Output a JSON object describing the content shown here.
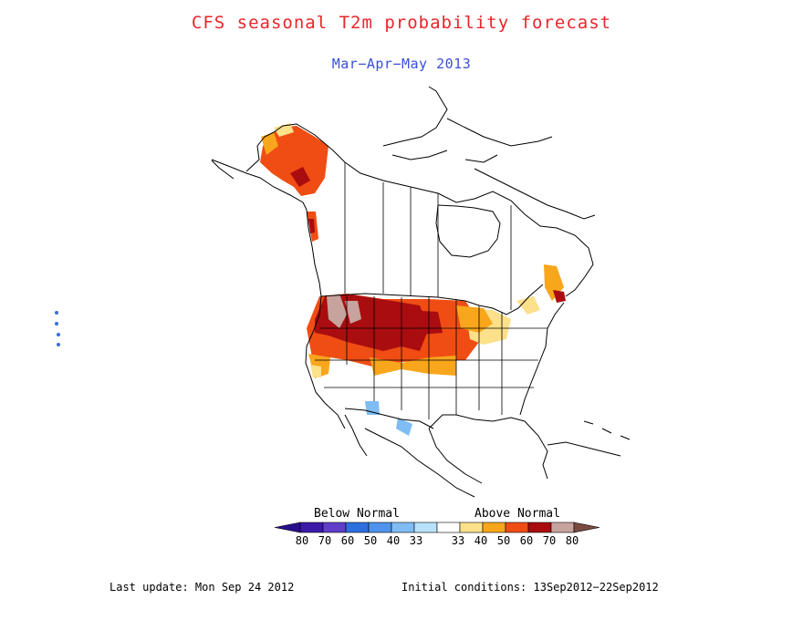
{
  "title": "CFS seasonal T2m probability forecast",
  "subtitle": "Mar−Apr−May 2013",
  "legend": {
    "below_label": "Below Normal",
    "above_label": "Above Normal",
    "bins": [
      {
        "label": "80",
        "color": "#3b1aa8"
      },
      {
        "label": "70",
        "color": "#5f3ec9"
      },
      {
        "label": "60",
        "color": "#2e6fe0"
      },
      {
        "label": "50",
        "color": "#4f93ec"
      },
      {
        "label": "40",
        "color": "#7fbcf4"
      },
      {
        "label": "33",
        "color": "#b8e2fa"
      },
      {
        "label": "33",
        "color": "#ffffff"
      },
      {
        "label": "40",
        "color": "#fde08a"
      },
      {
        "label": "50",
        "color": "#f8a61c"
      },
      {
        "label": "60",
        "color": "#f04d14"
      },
      {
        "label": "70",
        "color": "#a90d10"
      },
      {
        "label": "80",
        "color": "#c7a39e"
      }
    ],
    "end_low_color": "#2a0f8a",
    "end_high_color": "#7a4a40"
  },
  "footer": {
    "last_update": "Last update: Mon Sep 24 2012",
    "initial_conditions": "Initial conditions: 13Sep2012−22Sep2012"
  }
}
